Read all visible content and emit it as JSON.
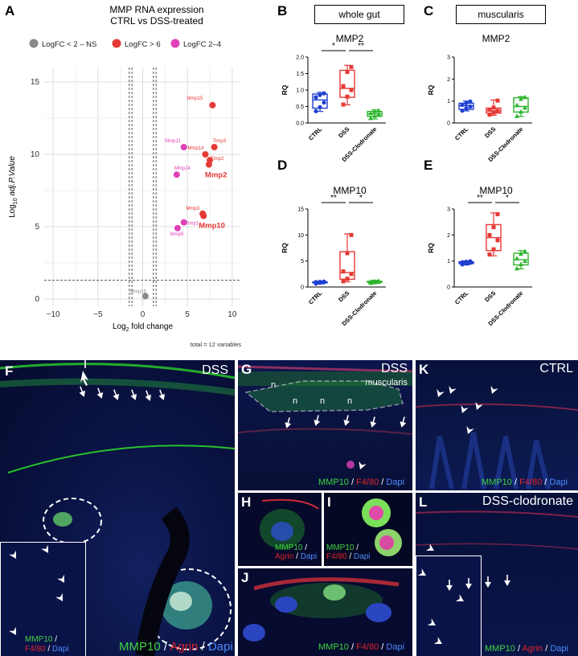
{
  "panelA": {
    "letter": "A",
    "title_line1": "MMP RNA expression",
    "title_line2": "CTRL vs DSS-treated",
    "legend": [
      {
        "label": "LogFC < 2 – NS",
        "color": "#8a8a8a"
      },
      {
        "label": "LogFC > 6",
        "color": "#e53935"
      },
      {
        "label": "LogFC 2–4",
        "color": "#e040b8"
      }
    ],
    "ylabel_main": "Log",
    "ylabel_sub": "10",
    "ylabel_rest": " adj.P.Value",
    "xlabel_main": "Log",
    "xlabel_sub": "2",
    "xlabel_rest": " fold change",
    "note": "total = 12 variables",
    "x_ticks": [
      "-10",
      "-5",
      "0",
      "5",
      "10"
    ],
    "y_ticks": [
      "0",
      "5",
      "10",
      "15"
    ]
  },
  "chart_data": [
    {
      "type": "scatter",
      "panel": "A",
      "xlim": [
        -11,
        11
      ],
      "ylim": [
        -0.5,
        16
      ],
      "vlines": [
        -1.5,
        -1.2,
        1.2,
        1.5
      ],
      "hline": 1.3,
      "points": [
        {
          "label": "Mmp16",
          "x": 0.3,
          "y": 0.2,
          "color": "#8a8a8a",
          "bold": false
        },
        {
          "label": "Mmp15",
          "x": 7.8,
          "y": 13.4,
          "color": "#e53935",
          "bold": false
        },
        {
          "label": "Timp3",
          "x": 8.0,
          "y": 10.5,
          "color": "#e53935",
          "bold": false
        },
        {
          "label": "Timp2",
          "x": 7.5,
          "y": 9.6,
          "color": "#e53935",
          "bold": false
        },
        {
          "label": "Mmp14",
          "x": 7.0,
          "y": 10.0,
          "color": "#e53935",
          "bold": false
        },
        {
          "label": "Mmp2",
          "x": 7.4,
          "y": 9.3,
          "color": "#e53935",
          "bold": true
        },
        {
          "label": "Mmp3",
          "x": 6.7,
          "y": 5.9,
          "color": "#e53935",
          "bold": false
        },
        {
          "label": "Mmp10",
          "x": 6.8,
          "y": 5.75,
          "color": "#e53935",
          "bold": true
        },
        {
          "label": "Mmp11",
          "x": 4.6,
          "y": 10.5,
          "color": "#e040b8",
          "bold": false
        },
        {
          "label": "Mmp24",
          "x": 3.8,
          "y": 8.6,
          "color": "#e040b8",
          "bold": false
        },
        {
          "label": "Timp1",
          "x": 4.6,
          "y": 5.3,
          "color": "#e040b8",
          "bold": false
        },
        {
          "label": "Mmp9",
          "x": 3.9,
          "y": 4.9,
          "color": "#e040b8",
          "bold": false
        }
      ]
    },
    {
      "type": "box",
      "panel": "B",
      "title": "MMP2",
      "ylabel": "RQ",
      "ylim": [
        0,
        2.0
      ],
      "yticks": [
        "0.0",
        "0.5",
        "1.0",
        "1.5",
        "2.0"
      ],
      "categories": [
        "CTRL",
        "DSS",
        "DSS-Clodronate"
      ],
      "boxes": [
        {
          "min": 0.35,
          "q1": 0.45,
          "median": 0.7,
          "q3": 0.88,
          "max": 0.93,
          "points": [
            0.36,
            0.48,
            0.62,
            0.78,
            0.85,
            0.9
          ],
          "color": "#1f3fcf",
          "marker": "circle"
        },
        {
          "min": 0.55,
          "q1": 0.78,
          "median": 1.05,
          "q3": 1.6,
          "max": 1.75,
          "points": [
            0.56,
            0.8,
            1.0,
            1.12,
            1.55,
            1.7
          ],
          "color": "#e53935",
          "marker": "square"
        },
        {
          "min": 0.12,
          "q1": 0.2,
          "median": 0.28,
          "q3": 0.35,
          "max": 0.4,
          "points": [
            0.15,
            0.22,
            0.27,
            0.3,
            0.36,
            0.38
          ],
          "color": "#2fb52f",
          "marker": "triangle"
        }
      ],
      "sig": [
        {
          "from": 0,
          "to": 1,
          "label": "*"
        },
        {
          "from": 1,
          "to": 2,
          "label": "**"
        }
      ]
    },
    {
      "type": "box",
      "panel": "C",
      "title": "MMP2",
      "ylabel": "RQ",
      "ylim": [
        0,
        3
      ],
      "yticks": [
        "0",
        "1",
        "2",
        "3"
      ],
      "categories": [
        "CTRL",
        "DSS",
        "DSS-Clodronate"
      ],
      "boxes": [
        {
          "min": 0.55,
          "q1": 0.62,
          "median": 0.78,
          "q3": 0.9,
          "max": 1.0,
          "points": [
            0.56,
            0.66,
            0.75,
            0.82,
            0.9,
            0.98
          ],
          "color": "#1f3fcf",
          "marker": "circle"
        },
        {
          "min": 0.35,
          "q1": 0.45,
          "median": 0.55,
          "q3": 0.68,
          "max": 1.05,
          "points": [
            0.38,
            0.48,
            0.55,
            0.6,
            0.7,
            1.02
          ],
          "color": "#e53935",
          "marker": "square"
        },
        {
          "min": 0.3,
          "q1": 0.5,
          "median": 0.75,
          "q3": 1.15,
          "max": 1.2,
          "points": [
            0.32,
            0.52,
            0.7,
            0.82,
            1.1,
            1.18
          ],
          "color": "#2fb52f",
          "marker": "triangle"
        }
      ],
      "sig": []
    },
    {
      "type": "box",
      "panel": "D",
      "title": "MMP10",
      "ylabel": "RQ",
      "ylim": [
        0,
        15
      ],
      "yticks": [
        "0",
        "5",
        "10",
        "15"
      ],
      "categories": [
        "CTRL",
        "DSS",
        "DSS-Clodronate"
      ],
      "boxes": [
        {
          "min": 0.6,
          "q1": 0.8,
          "median": 0.9,
          "q3": 1.0,
          "max": 1.1,
          "points": [
            0.65,
            0.8,
            0.9,
            0.95,
            1.0,
            1.05
          ],
          "color": "#1f3fcf",
          "marker": "circle"
        },
        {
          "min": 1.0,
          "q1": 1.5,
          "median": 2.8,
          "q3": 6.8,
          "max": 10.2,
          "points": [
            1.1,
            1.6,
            2.5,
            3.0,
            6.5,
            10.0
          ],
          "color": "#e53935",
          "marker": "square"
        },
        {
          "min": 0.7,
          "q1": 0.9,
          "median": 1.0,
          "q3": 1.1,
          "max": 1.3,
          "points": [
            0.8,
            0.9,
            1.0,
            1.05,
            1.1,
            1.2
          ],
          "color": "#2fb52f",
          "marker": "triangle"
        }
      ],
      "sig": [
        {
          "from": 0,
          "to": 1,
          "label": "**"
        },
        {
          "from": 1,
          "to": 2,
          "label": "*"
        }
      ]
    },
    {
      "type": "box",
      "panel": "E",
      "title": "MMP10",
      "ylabel": "RQ",
      "ylim": [
        0,
        3
      ],
      "yticks": [
        "0",
        "1",
        "2",
        "3"
      ],
      "categories": [
        "CTRL",
        "DSS",
        "DSS-Clodronate"
      ],
      "boxes": [
        {
          "min": 0.85,
          "q1": 0.9,
          "median": 0.93,
          "q3": 0.97,
          "max": 1.0,
          "points": [
            0.87,
            0.9,
            0.93,
            0.95,
            0.97,
            0.99
          ],
          "color": "#1f3fcf",
          "marker": "circle"
        },
        {
          "min": 1.2,
          "q1": 1.4,
          "median": 1.9,
          "q3": 2.4,
          "max": 2.85,
          "points": [
            1.25,
            1.45,
            1.8,
            2.0,
            2.3,
            2.8
          ],
          "color": "#e53935",
          "marker": "square"
        },
        {
          "min": 0.7,
          "q1": 0.85,
          "median": 1.05,
          "q3": 1.3,
          "max": 1.4,
          "points": [
            0.72,
            0.88,
            1.0,
            1.1,
            1.28,
            1.38
          ],
          "color": "#2fb52f",
          "marker": "triangle"
        }
      ],
      "sig": [
        {
          "from": 0,
          "to": 1,
          "label": "**"
        },
        {
          "from": 1,
          "to": 2,
          "label": "*"
        }
      ]
    }
  ],
  "labels": {
    "B": "B",
    "C": "C",
    "D": "D",
    "E": "E",
    "F": "F",
    "G": "G",
    "H": "H",
    "I": "I",
    "J": "J",
    "K": "K",
    "L": "L",
    "whole_gut": "whole gut",
    "muscularis": "muscularis"
  },
  "micro": {
    "F_tag": "DSS",
    "F_cap": {
      "a": "MMP10",
      "b": "Agrin",
      "c": "Dapi"
    },
    "F_inset": {
      "a": "MMP10",
      "b": "F4/80",
      "c": "Dapi"
    },
    "G_tag1": "DSS",
    "G_tag2": "muscularis",
    "G_cap": {
      "a": "MMP10",
      "b": "F4/80",
      "c": "Dapi"
    },
    "G_n": "n",
    "H_cap": {
      "a": "MMP10",
      "b": "Agrin",
      "c": "Dapi"
    },
    "I_cap": {
      "a": "MMP10",
      "b": "F4/80",
      "c": "Dapi"
    },
    "J_cap": {
      "a": "MMP10",
      "b": "F4/80",
      "c": "Dapi"
    },
    "K_tag": "CTRL",
    "K_cap": {
      "a": "MMP10",
      "b": "F4/80",
      "c": "Dapi"
    },
    "L_tag": "DSS-clodronate",
    "L_cap": {
      "a": "MMP10",
      "b": "Agrin",
      "c": "Dapi"
    }
  }
}
